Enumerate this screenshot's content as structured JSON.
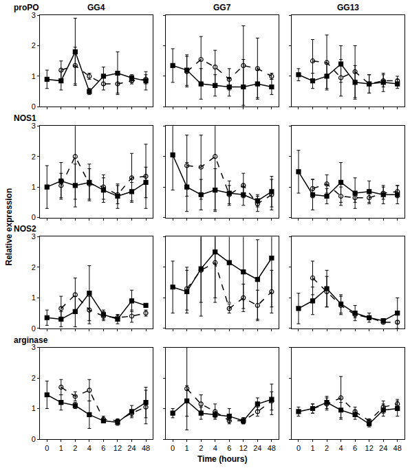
{
  "chart_data": {
    "type": "line",
    "xlabel": "Time (hours)",
    "ylabel": "Relative expression",
    "categories": [
      "0",
      "1",
      "2",
      "4",
      "6",
      "12",
      "24",
      "48"
    ],
    "ylim": [
      0,
      3
    ],
    "yticks": [
      0,
      1,
      2,
      3
    ],
    "grid": false,
    "columns": [
      "GG4",
      "GG7",
      "GG13"
    ],
    "rows": [
      "proPO",
      "NOS1",
      "NOS2",
      "arginase"
    ],
    "panels": [
      [
        [
          {
            "color": "#000000",
            "marker": "square",
            "line_style": "solid",
            "values": [
              0.9,
              0.85,
              1.8,
              0.5,
              1.0,
              1.1,
              0.95,
              0.85
            ],
            "error": [
              0.3,
              0.3,
              1.1,
              0.1,
              0.3,
              0.7,
              0.1,
              0.3
            ]
          },
          {
            "color": "#000000",
            "marker": "circle-open",
            "line_style": "dash",
            "values": [
              null,
              1.2,
              1.35,
              1.0,
              0.75,
              0.75,
              0.85,
              0.9
            ],
            "error": [
              null,
              0.3,
              0.6,
              0.1,
              0.2,
              0.3,
              0.1,
              0.15
            ]
          }
        ],
        [
          {
            "color": "#000000",
            "marker": "square",
            "line_style": "solid",
            "values": [
              1.35,
              1.2,
              0.75,
              0.7,
              0.65,
              0.65,
              0.75,
              0.65
            ],
            "error": [
              0.55,
              0.5,
              0.5,
              0.35,
              0.3,
              0.9,
              0.45,
              0.25
            ]
          },
          {
            "color": "#000000",
            "marker": "circle-open",
            "line_style": "dash",
            "values": [
              null,
              1.15,
              1.55,
              1.3,
              0.9,
              1.35,
              1.25,
              1.0
            ],
            "error": [
              null,
              0.5,
              0.75,
              0.55,
              0.35,
              1.3,
              1.0,
              0.1
            ]
          }
        ],
        [
          {
            "color": "#000000",
            "marker": "square",
            "line_style": "solid",
            "values": [
              1.05,
              0.85,
              1.0,
              1.4,
              0.8,
              0.75,
              0.8,
              0.75
            ],
            "error": [
              0.2,
              0.25,
              0.4,
              0.6,
              0.55,
              0.3,
              0.3,
              0.15
            ]
          },
          {
            "color": "#000000",
            "marker": "circle-open",
            "line_style": "dash",
            "values": [
              null,
              1.5,
              1.45,
              0.95,
              1.15,
              0.75,
              0.85,
              0.85
            ],
            "error": [
              null,
              0.7,
              0.9,
              0.6,
              0.85,
              0.3,
              0.2,
              0.15
            ]
          }
        ]
      ],
      [
        [
          {
            "color": "#000000",
            "marker": "square",
            "line_style": "solid",
            "values": [
              1.0,
              1.2,
              1.05,
              1.15,
              0.9,
              0.7,
              0.85,
              1.15
            ],
            "error": [
              0.7,
              0.6,
              0.7,
              0.6,
              0.4,
              0.4,
              0.3,
              0.5
            ]
          },
          {
            "color": "#000000",
            "marker": "circle-open",
            "line_style": "dash",
            "values": [
              null,
              1.05,
              2.0,
              1.1,
              1.0,
              0.75,
              1.3,
              1.35
            ],
            "error": [
              null,
              0.4,
              1.4,
              0.5,
              0.4,
              0.3,
              0.8,
              1.05
            ]
          }
        ],
        [
          {
            "color": "#000000",
            "marker": "square",
            "line_style": "solid",
            "values": [
              2.05,
              1.0,
              0.75,
              0.9,
              0.8,
              0.75,
              0.55,
              0.85
            ],
            "error": [
              1.15,
              0.8,
              0.5,
              0.7,
              0.4,
              0.35,
              0.2,
              0.5
            ]
          },
          {
            "color": "#000000",
            "marker": "circle-open",
            "line_style": "dash",
            "values": [
              null,
              1.7,
              1.65,
              2.0,
              0.75,
              1.05,
              0.45,
              0.75
            ],
            "error": [
              null,
              1.0,
              1.05,
              1.75,
              0.3,
              0.4,
              0.25,
              0.5
            ]
          }
        ],
        [
          {
            "color": "#000000",
            "marker": "square",
            "line_style": "solid",
            "values": [
              1.5,
              0.75,
              0.7,
              1.15,
              0.8,
              0.85,
              0.75,
              0.75
            ],
            "error": [
              0.7,
              0.5,
              0.25,
              0.65,
              0.5,
              0.35,
              0.3,
              0.3
            ]
          },
          {
            "color": "#000000",
            "marker": "circle-open",
            "line_style": "dash",
            "values": [
              null,
              0.95,
              1.1,
              0.7,
              0.65,
              0.65,
              0.8,
              0.85
            ],
            "error": [
              null,
              0.3,
              0.3,
              0.3,
              0.15,
              0.2,
              0.2,
              0.2
            ]
          }
        ]
      ],
      [
        [
          {
            "color": "#000000",
            "marker": "square",
            "line_style": "solid",
            "values": [
              0.35,
              0.3,
              0.55,
              1.15,
              0.45,
              0.3,
              0.9,
              0.75
            ],
            "error": [
              0.25,
              0.25,
              0.5,
              0.9,
              0.15,
              0.15,
              0.35,
              0.05
            ]
          },
          {
            "color": "#000000",
            "marker": "circle-open",
            "line_style": "dash",
            "values": [
              null,
              0.65,
              1.1,
              0.6,
              0.4,
              0.35,
              0.4,
              0.5
            ],
            "error": [
              null,
              0.4,
              0.55,
              0.45,
              0.15,
              0.1,
              0.2,
              0.1
            ]
          }
        ],
        [
          {
            "color": "#000000",
            "marker": "square",
            "line_style": "solid",
            "values": [
              1.35,
              1.2,
              1.95,
              2.5,
              2.15,
              1.85,
              1.6,
              2.3
            ],
            "error": [
              0.85,
              0.7,
              1.1,
              1.5,
              1.3,
              1.2,
              1.3,
              1.6
            ]
          },
          {
            "color": "#000000",
            "marker": "circle-open",
            "line_style": "dash",
            "values": [
              null,
              1.3,
              1.9,
              2.15,
              0.65,
              1.0,
              0.75,
              1.2
            ],
            "error": [
              null,
              0.7,
              1.5,
              1.3,
              0.15,
              0.45,
              0.5,
              0.7
            ]
          }
        ],
        [
          {
            "color": "#000000",
            "marker": "square",
            "line_style": "solid",
            "values": [
              0.65,
              0.9,
              1.3,
              0.8,
              0.5,
              0.35,
              0.25,
              0.5
            ],
            "error": [
              0.5,
              0.45,
              0.6,
              0.3,
              0.25,
              0.15,
              0.05,
              0.5
            ]
          },
          {
            "color": "#000000",
            "marker": "circle-open",
            "line_style": "dash",
            "values": [
              null,
              1.65,
              1.2,
              0.75,
              0.45,
              0.35,
              0.2,
              0.2
            ],
            "error": [
              null,
              0.55,
              0.5,
              0.3,
              0.1,
              0.05,
              0.05,
              0.05
            ]
          }
        ]
      ],
      [
        [
          {
            "color": "#000000",
            "marker": "square",
            "line_style": "solid",
            "values": [
              1.45,
              1.2,
              1.1,
              0.8,
              0.6,
              0.55,
              0.9,
              1.2
            ],
            "error": [
              0.45,
              0.25,
              0.1,
              0.45,
              0.05,
              0.1,
              0.2,
              0.5
            ]
          },
          {
            "color": "#000000",
            "marker": "circle-open",
            "line_style": "dash",
            "values": [
              null,
              1.7,
              1.4,
              1.6,
              0.65,
              0.6,
              0.85,
              1.05
            ],
            "error": [
              null,
              0.25,
              0.15,
              0.35,
              0.1,
              0.05,
              0.1,
              0.55
            ]
          }
        ],
        [
          {
            "color": "#000000",
            "marker": "square",
            "line_style": "solid",
            "values": [
              0.85,
              1.25,
              0.85,
              0.8,
              0.75,
              0.6,
              1.15,
              1.3
            ],
            "error": [
              0.15,
              0.5,
              0.2,
              0.1,
              0.25,
              0.1,
              0.2,
              0.5
            ]
          },
          {
            "color": "#000000",
            "marker": "circle-open",
            "line_style": "dash",
            "values": [
              null,
              1.65,
              1.15,
              0.9,
              0.6,
              0.6,
              0.9,
              1.25
            ],
            "error": [
              null,
              1.35,
              0.3,
              0.25,
              0.05,
              0.1,
              0.15,
              0.3
            ]
          }
        ],
        [
          {
            "color": "#000000",
            "marker": "square",
            "line_style": "solid",
            "values": [
              0.9,
              1.0,
              1.2,
              0.95,
              0.8,
              0.5,
              0.95,
              1.0
            ],
            "error": [
              0.15,
              0.15,
              0.2,
              0.25,
              0.15,
              0.1,
              0.2,
              0.25
            ]
          },
          {
            "color": "#000000",
            "marker": "circle-open",
            "line_style": "dash",
            "values": [
              null,
              1.0,
              1.15,
              1.35,
              0.9,
              0.6,
              1.05,
              1.15
            ],
            "error": [
              null,
              0.15,
              0.2,
              0.7,
              0.15,
              0.05,
              0.2,
              0.15
            ]
          }
        ]
      ]
    ]
  }
}
